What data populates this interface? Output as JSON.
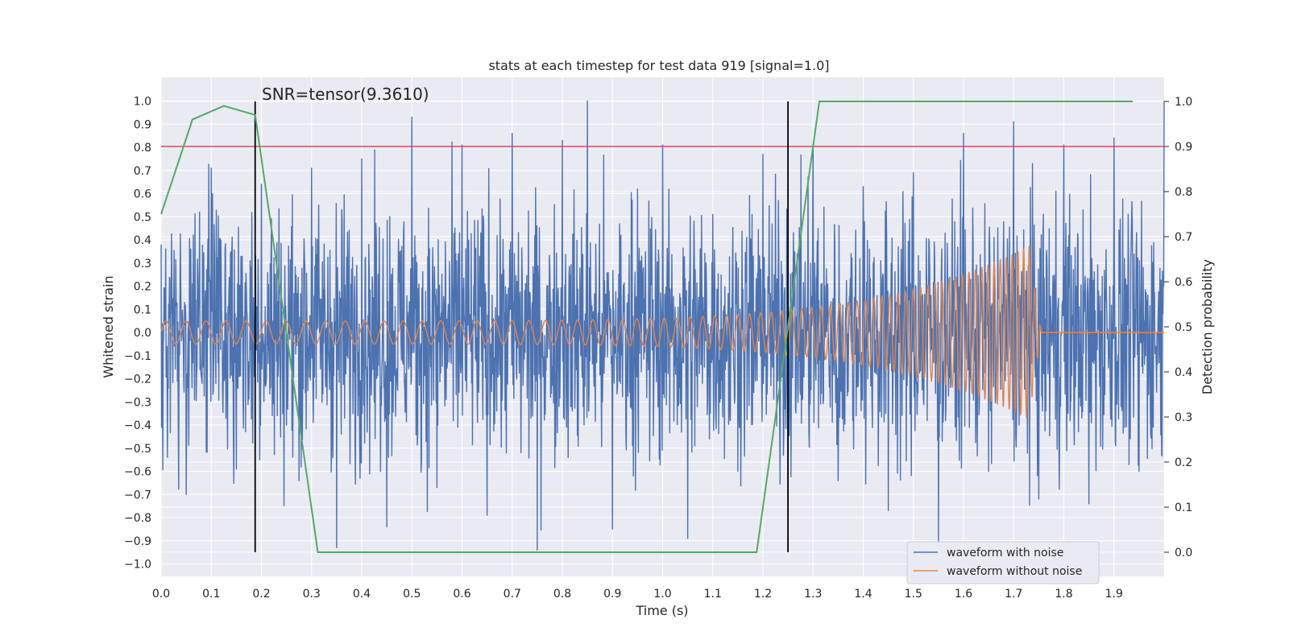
{
  "chart_data": {
    "type": "line",
    "title": "stats at each timestep for test data 919 [signal=1.0]",
    "xlabel": "Time (s)",
    "ylabel": "Whitened strain",
    "y2label": "Detection probability",
    "xlim": [
      0.0,
      2.0
    ],
    "ylim": [
      -1.05,
      1.05
    ],
    "y2lim": [
      -0.05,
      1.05
    ],
    "x_ticks": [
      "0.0",
      "0.1",
      "0.2",
      "0.3",
      "0.4",
      "0.5",
      "0.6",
      "0.7",
      "0.8",
      "0.9",
      "1.0",
      "1.1",
      "1.2",
      "1.3",
      "1.4",
      "1.5",
      "1.6",
      "1.7",
      "1.8",
      "1.9"
    ],
    "y_ticks": [
      "1.0",
      "0.9",
      "0.8",
      "0.7",
      "0.6",
      "0.5",
      "0.4",
      "0.3",
      "0.2",
      "0.1",
      "0.0",
      "−0.1",
      "−0.2",
      "−0.3",
      "−0.4",
      "−0.5",
      "−0.6",
      "−0.7",
      "−0.8",
      "−0.9",
      "−1.0"
    ],
    "y2_ticks": [
      "1.0",
      "0.9",
      "0.8",
      "0.7",
      "0.6",
      "0.5",
      "0.4",
      "0.3",
      "0.2",
      "0.1",
      "0.0"
    ],
    "grid": true,
    "legend_position": "bottom-right",
    "annotation": "SNR=tensor(9.3610)",
    "series": [
      {
        "name": "waveform with noise",
        "color": "#4c72b0",
        "axis": "left",
        "description_values": "dense whitened noise, amplitude mostly within ±0.7, peaks near ±1.0",
        "x": [
          0.0,
          0.05,
          0.1,
          0.15,
          0.2,
          0.25,
          0.3,
          0.35,
          0.4,
          0.45,
          0.5,
          0.55,
          0.6,
          0.65,
          0.7,
          0.75,
          0.8,
          0.85,
          0.9,
          0.95,
          1.0,
          1.05,
          1.1,
          1.15,
          1.2,
          1.25,
          1.3,
          1.35,
          1.4,
          1.45,
          1.5,
          1.55,
          1.6,
          1.65,
          1.7,
          1.75,
          1.8,
          1.85,
          1.9,
          1.95,
          2.0
        ],
        "values": [
          0.38,
          -0.7,
          0.71,
          -0.59,
          0.64,
          -0.4,
          0.71,
          -0.93,
          0.75,
          -0.84,
          0.93,
          -0.67,
          0.81,
          -0.79,
          0.86,
          -0.94,
          0.83,
          1.0,
          -0.85,
          0.62,
          0.81,
          -0.89,
          0.51,
          -0.6,
          0.77,
          -0.75,
          0.81,
          -0.64,
          0.63,
          -0.77,
          0.69,
          -0.93,
          0.86,
          -0.6,
          0.91,
          -0.72,
          0.81,
          -0.74,
          0.84,
          -0.6,
          1.0
        ]
      },
      {
        "name": "waveform without noise",
        "color": "#dd8452",
        "axis": "left",
        "chirp": {
          "start_amp": 0.05,
          "peak_amp": 0.38,
          "start_freq_hz": 25,
          "end_freq_hz": 90,
          "merger_time": 1.735,
          "end_time": 1.755
        }
      },
      {
        "name": "detection probability",
        "color": "#55a868",
        "axis": "right",
        "x": [
          0.0,
          0.0625,
          0.125,
          0.1875,
          0.3125,
          1.1875,
          1.3125,
          1.9375
        ],
        "values": [
          0.75,
          0.96,
          0.99,
          0.97,
          0.0,
          0.0,
          1.0,
          1.0
        ]
      }
    ],
    "threshold": {
      "value": 0.9,
      "axis": "right",
      "color": "#c44e52"
    },
    "vertical_markers": [
      0.1875,
      1.25
    ]
  }
}
